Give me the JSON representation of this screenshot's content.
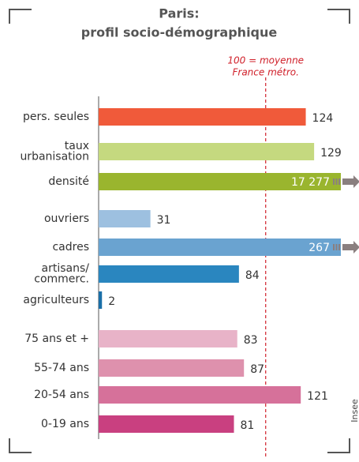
{
  "chart_data": {
    "type": "bar",
    "orientation": "horizontal",
    "title": [
      "Paris:",
      "profil socio-démographique"
    ],
    "categories": [
      "pers. seules",
      "taux\nurbanisation",
      "densité",
      "ouvriers",
      "cadres",
      "artisans/\ncommerc.",
      "agriculteurs",
      "75 ans et +",
      "55-74 ans",
      "20-54 ans",
      "0-19 ans"
    ],
    "values": [
      124,
      129,
      17277,
      31,
      267,
      84,
      2,
      83,
      87,
      121,
      81
    ],
    "value_labels": [
      "124",
      "129",
      "17 277",
      "31",
      "267",
      "84",
      "2",
      "83",
      "87",
      "121",
      "81"
    ],
    "colors": [
      "#f05a3a",
      "#c5d97f",
      "#9ab52e",
      "#9dc0e0",
      "#6aa3d0",
      "#2a86bf",
      "#1a6fa8",
      "#e8b3c8",
      "#de91ad",
      "#d6719a",
      "#c94080"
    ],
    "xlim": [
      0,
      145
    ],
    "reference": {
      "value": 100,
      "label": [
        "100 = moyenne",
        "France métro."
      ]
    },
    "source": "Insee"
  }
}
